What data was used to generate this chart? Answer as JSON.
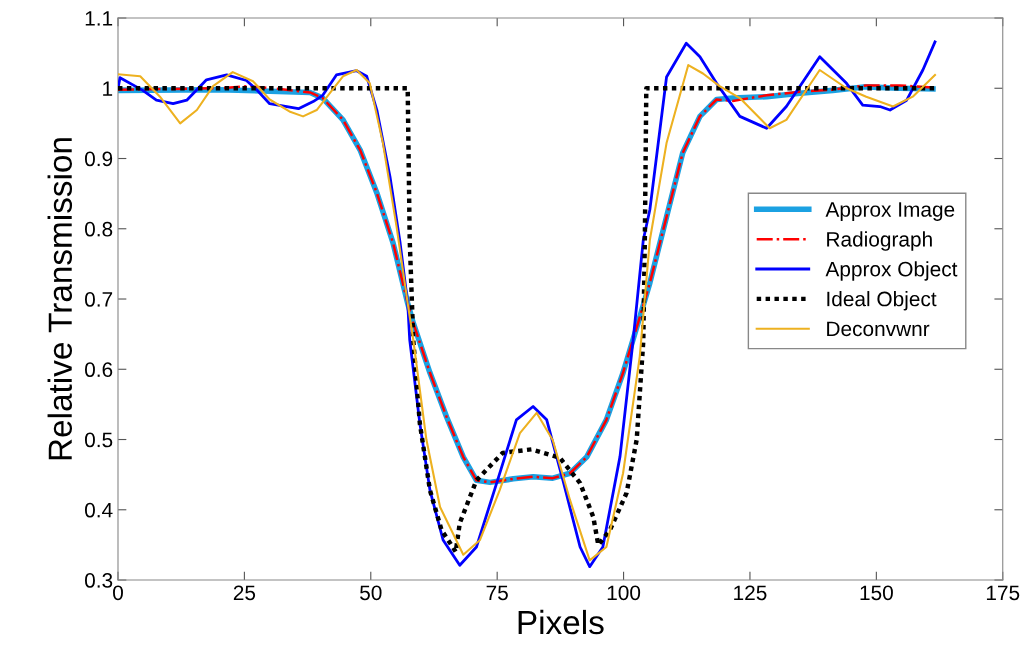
{
  "chart_data": {
    "type": "line",
    "xlabel": "Pixels",
    "ylabel": "Relative Transmission",
    "xlim": [
      0,
      175
    ],
    "xticks": [
      0,
      25,
      50,
      75,
      100,
      125,
      150,
      175
    ],
    "ylim": [
      0.3,
      1.1
    ],
    "yticks": [
      0.3,
      0.4,
      0.5,
      0.6,
      0.7,
      0.8,
      0.9,
      1,
      1.1
    ],
    "grid": false,
    "legend": "right",
    "marker": "none",
    "series": [
      {
        "name": "Approx Image",
        "color": "#1ba1e2",
        "line_style": "solid",
        "x": [
          0,
          20,
          38,
          40.5,
          44.5,
          47.9,
          51.2,
          54.4,
          57.3,
          58.4,
          61.7,
          65,
          68.3,
          70.9,
          73.6,
          78.2,
          82.1,
          86,
          89.4,
          92.7,
          96.6,
          99.9,
          103.2,
          105.2,
          108.5,
          111.7,
          115.1,
          118.4,
          121.6,
          128.3,
          134.9,
          141.4,
          148,
          154.6,
          161.2
        ],
        "values": [
          0.997,
          0.998,
          0.994,
          0.986,
          0.955,
          0.912,
          0.851,
          0.78,
          0.694,
          0.666,
          0.595,
          0.532,
          0.475,
          0.442,
          0.439,
          0.444,
          0.447,
          0.445,
          0.452,
          0.475,
          0.528,
          0.595,
          0.674,
          0.723,
          0.817,
          0.908,
          0.96,
          0.984,
          0.986,
          0.988,
          0.993,
          0.997,
          1.002,
          1.0,
          0.999
        ]
      },
      {
        "name": "Radiograph",
        "color": "#ff0000",
        "line_style": "dashdot",
        "x": [
          0,
          10,
          20,
          25.7,
          32,
          38,
          40.5,
          44.5,
          47.9,
          51.2,
          54.4,
          57.3,
          58.4,
          61.7,
          65,
          68.3,
          70.9,
          73.6,
          78.2,
          82.1,
          86,
          89.4,
          92.7,
          96.6,
          99.9,
          103.2,
          105.2,
          108.5,
          111.7,
          115.1,
          118.4,
          121.6,
          128.3,
          134.9,
          141.4,
          148,
          154.6,
          161.2
        ],
        "values": [
          0.998,
          0.999,
          1.0,
          1.003,
          0.999,
          0.994,
          0.986,
          0.955,
          0.912,
          0.851,
          0.78,
          0.694,
          0.666,
          0.595,
          0.532,
          0.475,
          0.442,
          0.439,
          0.444,
          0.447,
          0.445,
          0.452,
          0.475,
          0.528,
          0.595,
          0.674,
          0.723,
          0.817,
          0.908,
          0.96,
          0.984,
          0.982,
          0.99,
          0.995,
          0.998,
          1.004,
          1.004,
          1.001
        ]
      },
      {
        "name": "Approx Object",
        "color": "#0000ff",
        "line_style": "solid",
        "x": [
          0,
          0.4,
          4.9,
          7.6,
          10.9,
          13.6,
          17.5,
          21.5,
          25.4,
          27.4,
          30,
          33.4,
          35.7,
          38.6,
          40.5,
          43.2,
          47.2,
          49.2,
          51.2,
          53.8,
          55.8,
          57.3,
          57.7,
          59.7,
          61.7,
          64.3,
          67.6,
          70.9,
          74.9,
          78.8,
          82.1,
          84.8,
          88,
          91.4,
          93.3,
          95.9,
          99.3,
          101.9,
          103.9,
          105.2,
          108.5,
          112.4,
          115.1,
          118.4,
          123,
          128.3,
          132.2,
          138.8,
          144.1,
          147.3,
          150.7,
          152.7,
          156,
          159.2,
          161.6
        ],
        "values": [
          1.0,
          1.015,
          0.997,
          0.983,
          0.978,
          0.983,
          1.012,
          1.019,
          1.011,
          0.998,
          0.978,
          0.974,
          0.971,
          0.981,
          0.99,
          1.019,
          1.025,
          1.017,
          0.969,
          0.874,
          0.78,
          0.694,
          0.642,
          0.523,
          0.428,
          0.357,
          0.321,
          0.347,
          0.438,
          0.528,
          0.547,
          0.528,
          0.442,
          0.347,
          0.319,
          0.347,
          0.476,
          0.642,
          0.784,
          0.827,
          1.016,
          1.064,
          1.045,
          1.007,
          0.96,
          0.943,
          0.974,
          1.045,
          1.007,
          0.976,
          0.974,
          0.969,
          0.983,
          1.026,
          1.066
        ]
      },
      {
        "name": "Ideal Object",
        "color": "#000000",
        "line_style": "dotted",
        "x": [
          0,
          57.3,
          57.7,
          58.4,
          59.7,
          61.7,
          64,
          66.3,
          66.8,
          67.6,
          70.9,
          76.1,
          81.8,
          87.4,
          91.4,
          94,
          95,
          97.3,
          100.6,
          102.6,
          103.9,
          104.2,
          104.5,
          161.6
        ],
        "values": [
          1.0,
          1.0,
          0.784,
          0.642,
          0.523,
          0.428,
          0.371,
          0.346,
          0.34,
          0.381,
          0.442,
          0.481,
          0.486,
          0.474,
          0.438,
          0.39,
          0.35,
          0.371,
          0.424,
          0.5,
          0.64,
          0.78,
          1.0,
          1.0
        ]
      },
      {
        "name": "Deconvwnr",
        "color": "#edb120",
        "line_style": "solid",
        "x": [
          0,
          4.4,
          8.3,
          12.3,
          15.6,
          18.8,
          22.7,
          26.7,
          30,
          33.9,
          36.6,
          39.3,
          41.9,
          44.5,
          47.2,
          49.8,
          52.4,
          55.1,
          57.3,
          58.4,
          61,
          63.7,
          68.3,
          71.6,
          75.5,
          79.5,
          82.8,
          86,
          89.4,
          93.3,
          96.6,
          99.9,
          103.2,
          105.2,
          108.5,
          112.8,
          115.7,
          119,
          123,
          128.9,
          132.2,
          138.8,
          144.1,
          148,
          153.3,
          157.2,
          161.6
        ],
        "values": [
          1.02,
          1.017,
          0.988,
          0.95,
          0.969,
          1.003,
          1.023,
          1.01,
          0.984,
          0.967,
          0.96,
          0.969,
          0.993,
          1.017,
          1.026,
          1.007,
          0.922,
          0.803,
          0.694,
          0.642,
          0.5,
          0.404,
          0.336,
          0.357,
          0.428,
          0.509,
          0.538,
          0.499,
          0.414,
          0.328,
          0.347,
          0.452,
          0.618,
          0.784,
          0.922,
          1.033,
          1.021,
          1.003,
          0.986,
          0.943,
          0.955,
          1.026,
          1.0,
          0.988,
          0.974,
          0.988,
          1.019
        ]
      }
    ]
  }
}
